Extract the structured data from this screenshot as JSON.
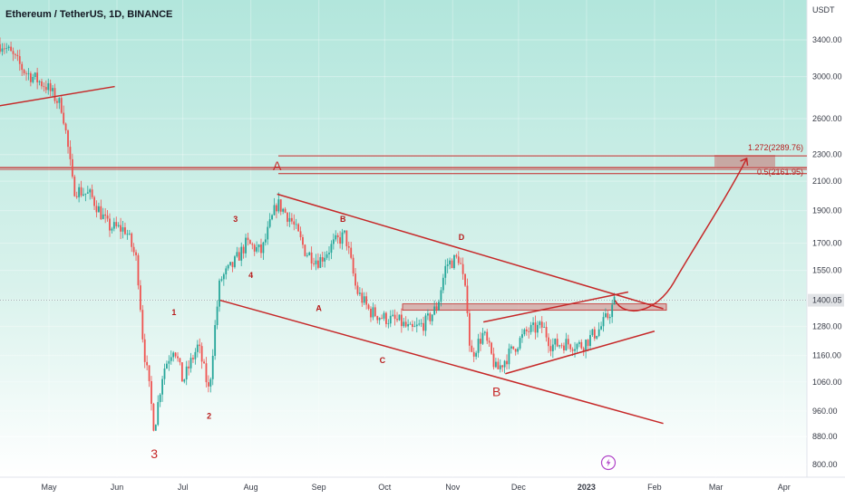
{
  "header": {
    "symbol": "Ethereum / TetherUS, 1D, BINANCE"
  },
  "chart_data": {
    "type": "candlestick",
    "title": "Ethereum / TetherUS, 1D, BINANCE",
    "y_axis_label": "USDT",
    "yticks": [
      800,
      880,
      960,
      1060,
      1160,
      1280,
      1400,
      1550,
      1700,
      1900,
      2100,
      2300,
      2600,
      3000,
      3400
    ],
    "yticks_labels": [
      "800.00",
      "880.00",
      "960.00",
      "1060.00",
      "1160.00",
      "1280.00",
      "1400.00",
      "1550.00",
      "1700.00",
      "1900.00",
      "2100.00",
      "2300.00",
      "2600.00",
      "3000.00",
      "3400.00"
    ],
    "xticks": [
      "May",
      "Jun",
      "Jul",
      "Aug",
      "Sep",
      "Oct",
      "Nov",
      "Dec",
      "2023",
      "Feb",
      "Mar",
      "Apr"
    ],
    "last_price": "1400.05",
    "grid": true,
    "price_path": [
      [
        "2022-04-10",
        3350
      ],
      [
        "2022-04-20",
        3050
      ],
      [
        "2022-04-30",
        2900
      ],
      [
        "2022-05-07",
        2700
      ],
      [
        "2022-05-12",
        2050
      ],
      [
        "2022-05-20",
        2000
      ],
      [
        "2022-05-28",
        1800
      ],
      [
        "2022-06-05",
        1780
      ],
      [
        "2022-06-10",
        1600
      ],
      [
        "2022-06-13",
        1200
      ],
      [
        "2022-06-18",
        900
      ],
      [
        "2022-06-22",
        1100
      ],
      [
        "2022-06-27",
        1200
      ],
      [
        "2022-07-01",
        1060
      ],
      [
        "2022-07-08",
        1200
      ],
      [
        "2022-07-13",
        1020
      ],
      [
        "2022-07-18",
        1500
      ],
      [
        "2022-07-24",
        1580
      ],
      [
        "2022-07-30",
        1700
      ],
      [
        "2022-08-06",
        1650
      ],
      [
        "2022-08-13",
        1950
      ],
      [
        "2022-08-19",
        1850
      ],
      [
        "2022-08-26",
        1650
      ],
      [
        "2022-09-01",
        1600
      ],
      [
        "2022-09-08",
        1700
      ],
      [
        "2022-09-13",
        1750
      ],
      [
        "2022-09-18",
        1450
      ],
      [
        "2022-09-24",
        1350
      ],
      [
        "2022-09-30",
        1320
      ],
      [
        "2022-10-08",
        1300
      ],
      [
        "2022-10-13",
        1260
      ],
      [
        "2022-10-20",
        1300
      ],
      [
        "2022-10-25",
        1370
      ],
      [
        "2022-10-29",
        1580
      ],
      [
        "2022-11-04",
        1620
      ],
      [
        "2022-11-08",
        1350
      ],
      [
        "2022-11-09",
        1150
      ],
      [
        "2022-11-15",
        1250
      ],
      [
        "2022-11-21",
        1100
      ],
      [
        "2022-11-28",
        1180
      ],
      [
        "2022-12-05",
        1260
      ],
      [
        "2022-12-12",
        1280
      ],
      [
        "2022-12-16",
        1200
      ],
      [
        "2022-12-22",
        1210
      ],
      [
        "2022-12-30",
        1200
      ],
      [
        "2023-01-07",
        1270
      ],
      [
        "2023-01-11",
        1330
      ],
      [
        "2023-01-14",
        1400
      ]
    ],
    "annotations": {
      "wave_labels_small": [
        {
          "text": "1",
          "date": "2022-06-27",
          "price": 1330
        },
        {
          "text": "2",
          "date": "2022-07-13",
          "price": 935
        },
        {
          "text": "3",
          "date": "2022-07-25",
          "price": 1830
        },
        {
          "text": "4",
          "date": "2022-08-01",
          "price": 1510
        },
        {
          "text": "A",
          "date": "2022-09-01",
          "price": 1350
        },
        {
          "text": "B",
          "date": "2022-09-12",
          "price": 1830
        },
        {
          "text": "C",
          "date": "2022-09-30",
          "price": 1130
        },
        {
          "text": "D",
          "date": "2022-11-05",
          "price": 1720
        }
      ],
      "wave_labels_large": [
        {
          "text": "3",
          "date": "2022-06-18",
          "price": 818
        },
        {
          "text": "A",
          "date": "2022-08-13",
          "price": 2180
        },
        {
          "text": "B",
          "date": "2022-11-21",
          "price": 1010
        }
      ],
      "fib_levels": [
        {
          "label": "1.272(2289.76)",
          "value": 2289.76
        },
        {
          "label": "0.5(2161.95)",
          "value": 2161.95
        }
      ],
      "fib_label": "1.272(2289.76)",
      "fib_label_2": "0.5(2161.95)",
      "horizontal_levels": [
        2200,
        2290,
        1370
      ],
      "trendlines": [
        {
          "from": [
            "2022-08-13",
            2010
          ],
          "to": [
            "2023-02-05",
            1360
          ]
        },
        {
          "from": [
            "2022-07-18",
            1400
          ],
          "to": [
            "2023-02-05",
            920
          ]
        },
        {
          "from": [
            "2022-11-15",
            1300
          ],
          "to": [
            "2023-01-20",
            1440
          ]
        },
        {
          "from": [
            "2022-11-25",
            1090
          ],
          "to": [
            "2023-02-01",
            1260
          ]
        },
        {
          "from": [
            "2022-03-20",
            2650
          ],
          "to": [
            "2022-05-31",
            2900
          ]
        }
      ],
      "projection": {
        "from": [
          "2023-01-14",
          1400
        ],
        "to": [
          "2023-03-15",
          2270
        ]
      }
    },
    "colors": {
      "up": "#26a69a",
      "down": "#ef5350",
      "annotation": "#c62828",
      "background_top": "#b2e6dc",
      "background_bottom": "#ffffff",
      "price_label_bg": "#e1e3e6"
    }
  }
}
